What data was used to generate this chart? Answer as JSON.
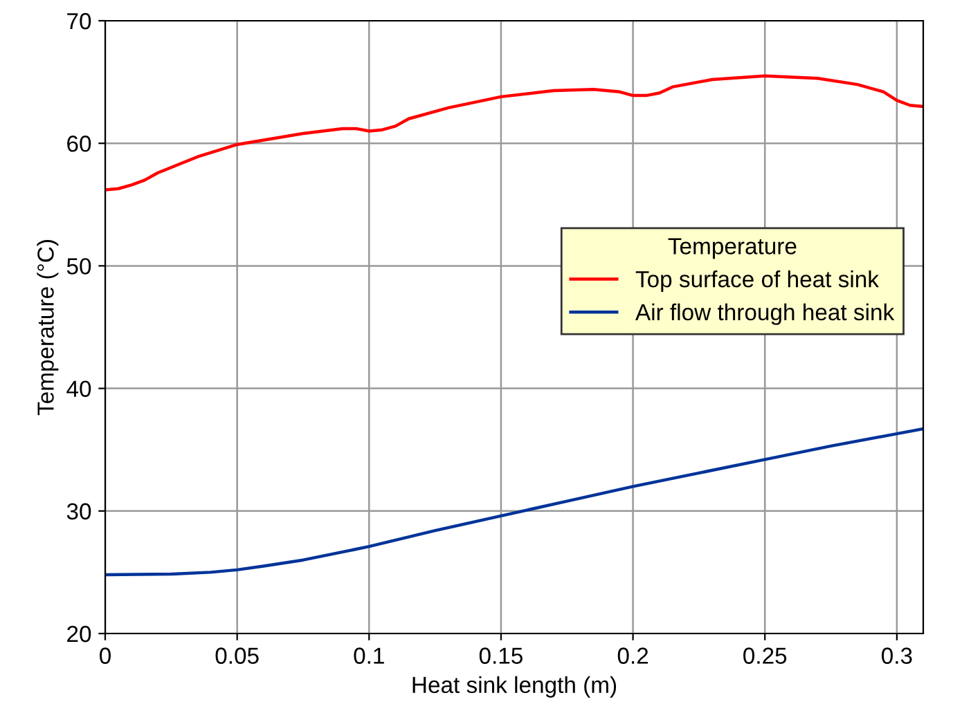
{
  "chart_data": {
    "type": "line",
    "xlabel": "Heat sink length (m)",
    "ylabel": "Temperature (°C)",
    "legend_title": "Temperature",
    "legend": "center right",
    "grid": true,
    "xlim": [
      0,
      0.31
    ],
    "ylim": [
      20,
      70
    ],
    "xticks": [
      0,
      0.05,
      0.1,
      0.15,
      0.2,
      0.25,
      0.3
    ],
    "yticks": [
      20,
      30,
      40,
      50,
      60,
      70
    ],
    "series": [
      {
        "name": "Top surface of heat sink",
        "color": "#ff0000",
        "x": [
          0,
          0.005,
          0.01,
          0.015,
          0.02,
          0.035,
          0.05,
          0.075,
          0.09,
          0.095,
          0.1,
          0.105,
          0.11,
          0.115,
          0.13,
          0.15,
          0.17,
          0.185,
          0.195,
          0.2,
          0.205,
          0.21,
          0.215,
          0.23,
          0.25,
          0.27,
          0.285,
          0.295,
          0.3,
          0.305,
          0.31
        ],
        "values": [
          56.2,
          56.3,
          56.6,
          57.0,
          57.6,
          58.9,
          59.9,
          60.8,
          61.2,
          61.2,
          61.0,
          61.1,
          61.4,
          62.0,
          62.9,
          63.8,
          64.3,
          64.4,
          64.2,
          63.9,
          63.9,
          64.1,
          64.6,
          65.2,
          65.5,
          65.3,
          64.8,
          64.2,
          63.5,
          63.1,
          63.0
        ]
      },
      {
        "name": "Air flow through heat sink",
        "color": "#003399",
        "x": [
          0,
          0.025,
          0.04,
          0.05,
          0.06,
          0.075,
          0.1,
          0.125,
          0.15,
          0.175,
          0.2,
          0.225,
          0.25,
          0.275,
          0.3,
          0.31
        ],
        "values": [
          24.8,
          24.85,
          25.0,
          25.2,
          25.5,
          26.0,
          27.1,
          28.4,
          29.6,
          30.8,
          32.0,
          33.1,
          34.2,
          35.3,
          36.3,
          36.7
        ]
      }
    ]
  }
}
